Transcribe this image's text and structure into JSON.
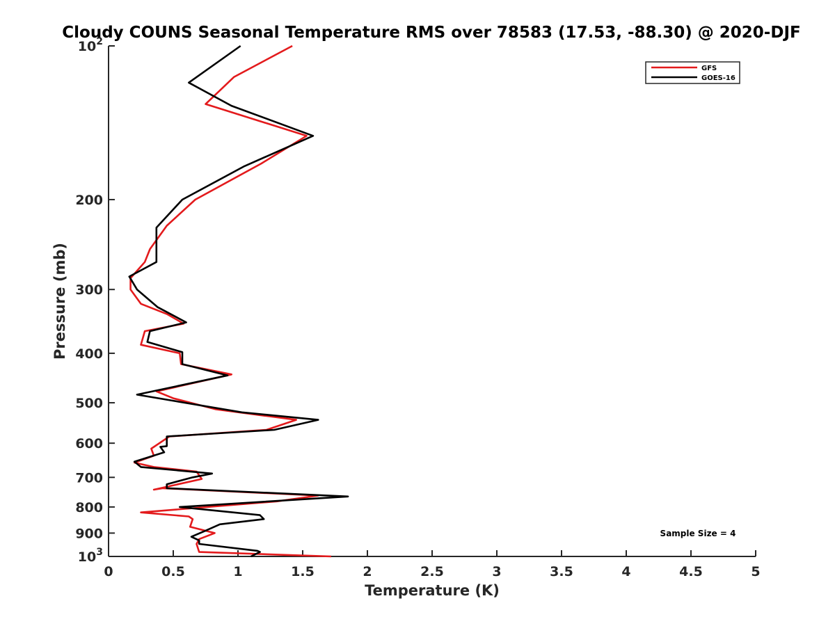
{
  "chart_data": {
    "type": "line",
    "title": "Cloudy COUNS Seasonal Temperature RMS over 78583 (17.53, -88.30) @ 2020-DJF",
    "xlabel": "Temperature (K)",
    "ylabel": "Pressure (mb)",
    "xlim": [
      0,
      5
    ],
    "ylim": [
      100,
      1000
    ],
    "y_scale": "log",
    "y_reversed": true,
    "grid": false,
    "legend_position": "top-right",
    "x_ticks": [
      0,
      0.5,
      1,
      1.5,
      2,
      2.5,
      3,
      3.5,
      4,
      4.5,
      5
    ],
    "x_tick_labels": [
      "0",
      "0.5",
      "1",
      "1.5",
      "2",
      "2.5",
      "3",
      "3.5",
      "4",
      "4.5",
      "5"
    ],
    "y_ticks": [
      {
        "value": 100,
        "base": "10",
        "exp": "2"
      },
      {
        "value": 200,
        "label": "200"
      },
      {
        "value": 300,
        "label": "300"
      },
      {
        "value": 400,
        "label": "400"
      },
      {
        "value": 500,
        "label": "500"
      },
      {
        "value": 600,
        "label": "600"
      },
      {
        "value": 700,
        "label": "700"
      },
      {
        "value": 800,
        "label": "800"
      },
      {
        "value": 900,
        "label": "900"
      },
      {
        "value": 1000,
        "base": "10",
        "exp": "3"
      }
    ],
    "annotation": "Sample Size = 4",
    "series": [
      {
        "name": "GFS",
        "color": "#e31a1c",
        "points": [
          [
            1.42,
            100
          ],
          [
            0.97,
            115
          ],
          [
            0.75,
            130
          ],
          [
            1.53,
            150
          ],
          [
            1.18,
            170
          ],
          [
            0.67,
            200
          ],
          [
            0.45,
            225
          ],
          [
            0.32,
            250
          ],
          [
            0.28,
            265
          ],
          [
            0.17,
            285
          ],
          [
            0.17,
            300
          ],
          [
            0.25,
            320
          ],
          [
            0.45,
            335
          ],
          [
            0.58,
            350
          ],
          [
            0.28,
            362
          ],
          [
            0.25,
            385
          ],
          [
            0.55,
            400
          ],
          [
            0.56,
            420
          ],
          [
            0.95,
            440
          ],
          [
            0.37,
            475
          ],
          [
            0.5,
            490
          ],
          [
            0.83,
            515
          ],
          [
            1.45,
            540
          ],
          [
            1.22,
            565
          ],
          [
            0.47,
            582
          ],
          [
            0.33,
            615
          ],
          [
            0.35,
            635
          ],
          [
            0.2,
            655
          ],
          [
            0.35,
            668
          ],
          [
            0.68,
            682
          ],
          [
            0.72,
            705
          ],
          [
            0.35,
            740
          ],
          [
            0.42,
            735
          ],
          [
            1.62,
            760
          ],
          [
            1.3,
            780
          ],
          [
            0.25,
            820
          ],
          [
            0.62,
            835
          ],
          [
            0.65,
            845
          ],
          [
            0.63,
            875
          ],
          [
            0.82,
            900
          ],
          [
            0.7,
            925
          ],
          [
            0.68,
            945
          ],
          [
            0.7,
            980
          ],
          [
            1.72,
            1000
          ]
        ]
      },
      {
        "name": "GOES-16",
        "color": "#000000",
        "points": [
          [
            1.02,
            100
          ],
          [
            0.62,
            118
          ],
          [
            0.95,
            131
          ],
          [
            1.58,
            150
          ],
          [
            1.05,
            172
          ],
          [
            0.57,
            200
          ],
          [
            0.37,
            227
          ],
          [
            0.37,
            250
          ],
          [
            0.37,
            265
          ],
          [
            0.16,
            283
          ],
          [
            0.22,
            300
          ],
          [
            0.38,
            325
          ],
          [
            0.6,
            348
          ],
          [
            0.32,
            362
          ],
          [
            0.3,
            380
          ],
          [
            0.57,
            398
          ],
          [
            0.57,
            420
          ],
          [
            0.92,
            442
          ],
          [
            0.22,
            482
          ],
          [
            1.03,
            522
          ],
          [
            1.62,
            540
          ],
          [
            1.28,
            565
          ],
          [
            0.45,
            582
          ],
          [
            0.45,
            608
          ],
          [
            0.4,
            610
          ],
          [
            0.43,
            625
          ],
          [
            0.2,
            652
          ],
          [
            0.25,
            668
          ],
          [
            0.8,
            688
          ],
          [
            0.65,
            700
          ],
          [
            0.45,
            722
          ],
          [
            0.45,
            735
          ],
          [
            1.85,
            763
          ],
          [
            0.55,
            800
          ],
          [
            1.17,
            830
          ],
          [
            1.2,
            845
          ],
          [
            0.86,
            865
          ],
          [
            0.75,
            890
          ],
          [
            0.64,
            915
          ],
          [
            0.7,
            930
          ],
          [
            0.7,
            945
          ],
          [
            1.15,
            975
          ],
          [
            1.17,
            980
          ],
          [
            1.1,
            1000
          ]
        ]
      }
    ]
  }
}
